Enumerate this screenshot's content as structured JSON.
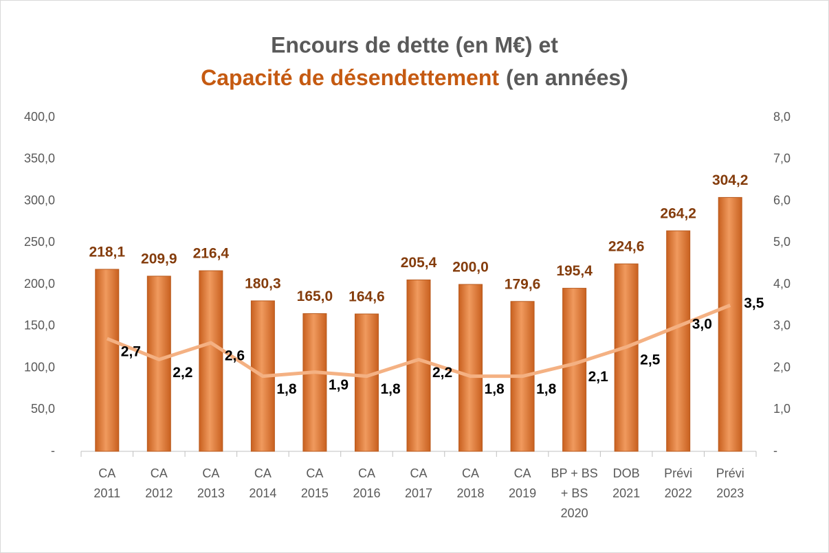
{
  "chart_data": {
    "type": "bar_line",
    "title": {
      "line1": "Encours de dette (en M€) et",
      "line2_highlight": "Capacité de désendettement",
      "line2_rest": "(en années)"
    },
    "title_color": "#595959",
    "highlight_color": "#c55a11",
    "categories": [
      [
        "CA",
        "2011"
      ],
      [
        "CA",
        "2012"
      ],
      [
        "CA",
        "2013"
      ],
      [
        "CA",
        "2014"
      ],
      [
        "CA",
        "2015"
      ],
      [
        "CA",
        "2016"
      ],
      [
        "CA",
        "2017"
      ],
      [
        "CA",
        "2018"
      ],
      [
        "CA",
        "2019"
      ],
      [
        "BP + BS",
        "+ BS",
        "2020"
      ],
      [
        "DOB",
        "2021"
      ],
      [
        "Prévi",
        "2022"
      ],
      [
        "Prévi",
        "2023"
      ]
    ],
    "series": [
      {
        "type": "bar",
        "axis": "y",
        "color": "#e07a36",
        "label_color": "#843c0c",
        "values": [
          218.1,
          209.9,
          216.4,
          180.3,
          165.0,
          164.6,
          205.4,
          200.0,
          179.6,
          195.4,
          224.6,
          264.2,
          304.2
        ],
        "value_labels": [
          "218,1",
          "209,9",
          "216,4",
          "180,3",
          "165,0",
          "164,6",
          "205,4",
          "200,0",
          "179,6",
          "195,4",
          "224,6",
          "264,2",
          "304,2"
        ]
      },
      {
        "type": "line",
        "axis": "y2",
        "color": "#f4b183",
        "label_color": "#000000",
        "values": [
          2.7,
          2.2,
          2.6,
          1.8,
          1.9,
          1.8,
          2.2,
          1.8,
          1.8,
          2.1,
          2.5,
          3.0,
          3.5
        ],
        "value_labels": [
          "2,7",
          "2,2",
          "2,6",
          "1,8",
          "1,9",
          "1,8",
          "2,2",
          "1,8",
          "1,8",
          "2,1",
          "2,5",
          "3,0",
          "3,5"
        ]
      }
    ],
    "ylim": [
      0,
      400
    ],
    "yticks": [
      {
        "value": 0,
        "label": "-"
      },
      {
        "value": 50,
        "label": "50,0"
      },
      {
        "value": 100,
        "label": "100,0"
      },
      {
        "value": 150,
        "label": "150,0"
      },
      {
        "value": 200,
        "label": "200,0"
      },
      {
        "value": 250,
        "label": "250,0"
      },
      {
        "value": 300,
        "label": "300,0"
      },
      {
        "value": 350,
        "label": "350,0"
      },
      {
        "value": 400,
        "label": "400,0"
      }
    ],
    "y2lim": [
      0,
      8
    ],
    "y2ticks": [
      {
        "value": 0,
        "label": "-"
      },
      {
        "value": 1,
        "label": "1,0"
      },
      {
        "value": 2,
        "label": "2,0"
      },
      {
        "value": 3,
        "label": "3,0"
      },
      {
        "value": 4,
        "label": "4,0"
      },
      {
        "value": 5,
        "label": "5,0"
      },
      {
        "value": 6,
        "label": "6,0"
      },
      {
        "value": 7,
        "label": "7,0"
      },
      {
        "value": 8,
        "label": "8,0"
      }
    ],
    "grid": false
  }
}
